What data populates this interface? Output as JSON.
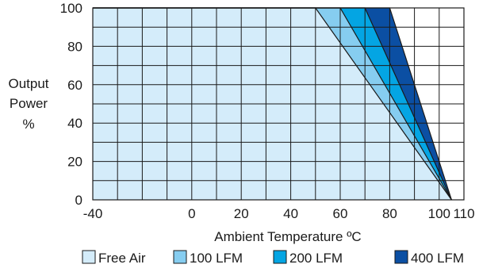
{
  "chart_data": {
    "type": "area",
    "title": "",
    "xlabel": "Ambient Temperature ºC",
    "ylabel": [
      "Output",
      "Power",
      "%"
    ],
    "xlim": [
      -40,
      110
    ],
    "ylim": [
      0,
      100
    ],
    "x_ticks": [
      {
        "value": -40,
        "label": "-40"
      },
      {
        "value": 0,
        "label": "0"
      },
      {
        "value": 20,
        "label": "20"
      },
      {
        "value": 40,
        "label": "40"
      },
      {
        "value": 60,
        "label": "60"
      },
      {
        "value": 80,
        "label": "80"
      },
      {
        "value": 100,
        "label": "100"
      },
      {
        "value": 110,
        "label": "110"
      }
    ],
    "y_ticks": [
      {
        "value": 0,
        "label": "0"
      },
      {
        "value": 20,
        "label": "20"
      },
      {
        "value": 40,
        "label": "40"
      },
      {
        "value": 60,
        "label": "60"
      },
      {
        "value": 80,
        "label": "80"
      },
      {
        "value": 100,
        "label": "100"
      }
    ],
    "grid": true,
    "legend_position": "bottom",
    "series": [
      {
        "name": "Free Air",
        "color": "#d4ecfa",
        "x": [
          -40,
          50,
          105
        ],
        "y": [
          100,
          100,
          0
        ]
      },
      {
        "name": "100 LFM",
        "color": "#86cdf0",
        "x": [
          -40,
          60,
          105
        ],
        "y": [
          100,
          100,
          0
        ]
      },
      {
        "name": "200 LFM",
        "color": "#04a5e3",
        "x": [
          -40,
          70,
          105
        ],
        "y": [
          100,
          100,
          0
        ]
      },
      {
        "name": "400 LFM",
        "color": "#0b4fa3",
        "x": [
          -40,
          80,
          105
        ],
        "y": [
          100,
          100,
          0
        ]
      }
    ]
  }
}
